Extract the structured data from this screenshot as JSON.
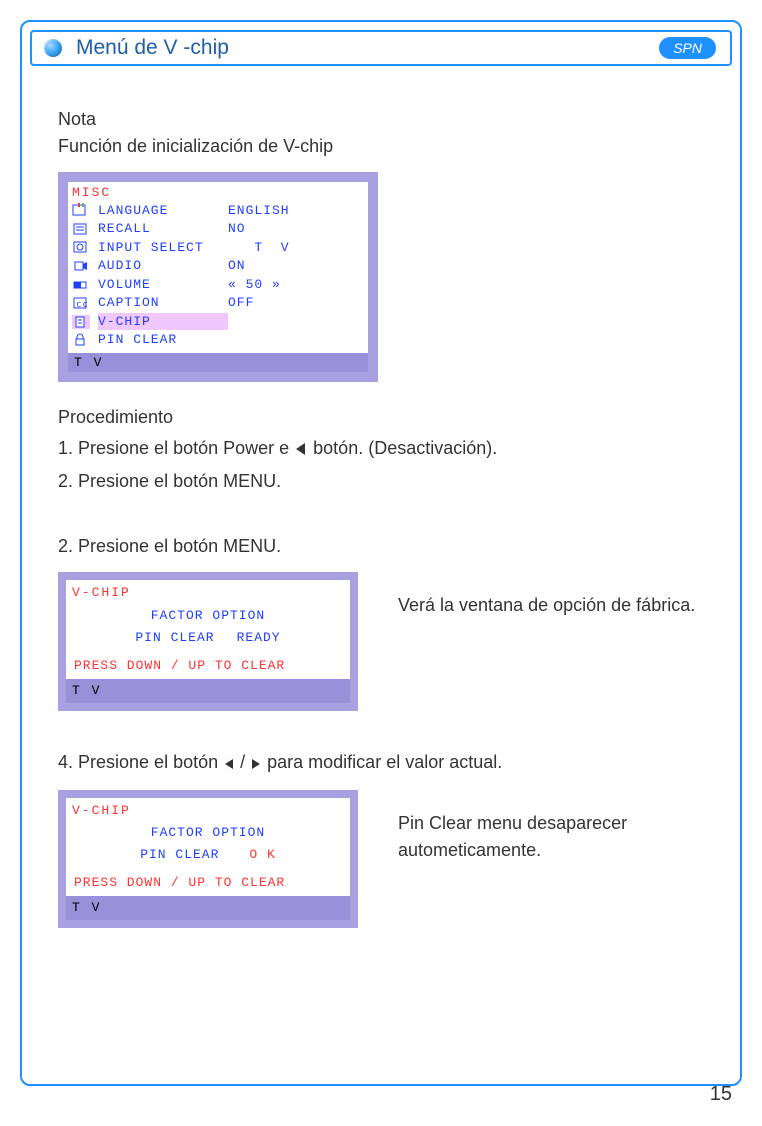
{
  "header": {
    "title": "Menú de V  -chip",
    "lang_badge": "SPN"
  },
  "note": {
    "title": "Nota",
    "subtitle": "Función de inicialización de V-chip"
  },
  "osd_misc": {
    "title": "MISC",
    "footer": "T  V",
    "rows": [
      {
        "label": "LANGUAGE",
        "value": "ENGLISH"
      },
      {
        "label": "RECALL",
        "value": "NO"
      },
      {
        "label": "INPUT  SELECT",
        "value": "   T  V"
      },
      {
        "label": "AUDIO",
        "value": "ON"
      },
      {
        "label": "VOLUME",
        "value": "« 50 »"
      },
      {
        "label": "CAPTION",
        "value": "OFF"
      },
      {
        "label": "V-CHIP",
        "value": ""
      },
      {
        "label": "PIN  CLEAR",
        "value": ""
      }
    ],
    "highlight_index": 6
  },
  "procedure": {
    "heading": "Procedimiento",
    "step1_pre": "1. Presione el botón Power e ",
    "step1_post": " botón. (Desactivación).",
    "step2": "2. Presione el botón MENU."
  },
  "section2": {
    "heading": "2. Presione el botón MENU.",
    "side_text": "Verá la ventana de opción de fábrica."
  },
  "osd_vchip_ready": {
    "title": "V-CHIP",
    "line1": "FACTOR   OPTION",
    "line2_label": "PIN  CLEAR",
    "line2_value": "READY",
    "press": "PRESS   DOWN / UP    TO   CLEAR",
    "footer": "T  V"
  },
  "section4": {
    "heading_pre": "4. Presione el botón ",
    "heading_post": " para modificar el valor actual.",
    "side_text": "Pin Clear menu  desaparecer autometicamente."
  },
  "osd_vchip_ok": {
    "title": "V-CHIP",
    "line1": "FACTOR   OPTION",
    "line2_label": "PIN  CLEAR",
    "line2_value": "O  K",
    "press": "PRESS   DOWN / UP    TO   CLEAR",
    "footer": "T  V"
  },
  "colors": {
    "frame_border": "#1e90ff",
    "header_text": "#1e5fa8",
    "badge_bg": "#1e90ff",
    "osd_border": "#a8a0e0",
    "osd_text": "#2040ff",
    "osd_red": "#ff3333",
    "osd_highlight": "#f0c8ff",
    "osd_footer_bg": "#9890d8"
  },
  "page_number": "15"
}
